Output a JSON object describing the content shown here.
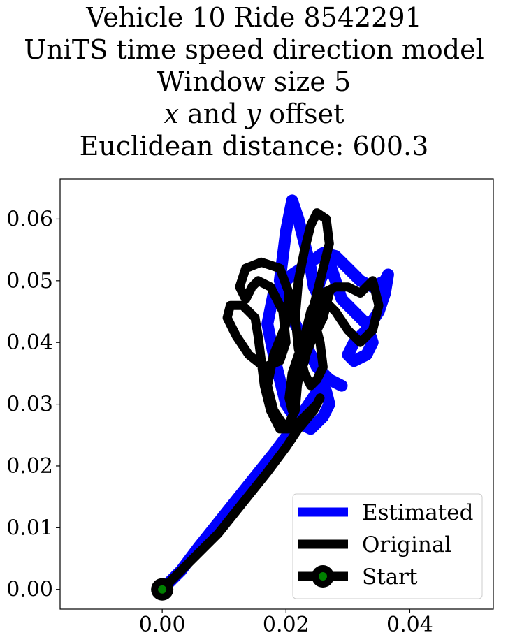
{
  "chart_data": {
    "type": "line",
    "title_lines": [
      "Vehicle 10 Ride 8542291",
      "UniTS time speed direction model",
      "Window size 5",
      "x and y offset",
      "Euclidean distance: 600.3"
    ],
    "xlabel": "",
    "ylabel": "",
    "xlim": [
      -0.0165,
      0.0535
    ],
    "ylim": [
      -0.0032,
      0.0665
    ],
    "xticks": [
      0.0,
      0.02,
      0.04
    ],
    "xtick_labels": [
      "0.00",
      "0.02",
      "0.04"
    ],
    "yticks": [
      0.0,
      0.01,
      0.02,
      0.03,
      0.04,
      0.05,
      0.06
    ],
    "ytick_labels": [
      "0.00",
      "0.01",
      "0.02",
      "0.03",
      "0.04",
      "0.05",
      "0.06"
    ],
    "grid": false,
    "legend_position": "lower-right",
    "series": [
      {
        "name": "Estimated",
        "color": "#0000ff",
        "x": [
          0.0,
          0.003,
          0.006,
          0.01,
          0.014,
          0.018,
          0.021,
          0.023,
          0.025,
          0.026,
          0.0265,
          0.027,
          0.026,
          0.024,
          0.022,
          0.02,
          0.019,
          0.018,
          0.017,
          0.018,
          0.021,
          0.024,
          0.026,
          0.028,
          0.03,
          0.032,
          0.034,
          0.036,
          0.0365,
          0.036,
          0.035,
          0.033,
          0.031,
          0.03,
          0.031,
          0.033,
          0.034,
          0.033,
          0.031,
          0.029,
          0.028,
          0.027,
          0.0265,
          0.0255,
          0.025,
          0.0245,
          0.024,
          0.023,
          0.022,
          0.021,
          0.02,
          0.019,
          0.021,
          0.023,
          0.025,
          0.027,
          0.029
        ],
        "y": [
          0.0,
          0.003,
          0.007,
          0.012,
          0.017,
          0.022,
          0.026,
          0.029,
          0.032,
          0.033,
          0.032,
          0.03,
          0.028,
          0.026,
          0.027,
          0.03,
          0.034,
          0.038,
          0.043,
          0.048,
          0.051,
          0.053,
          0.0545,
          0.054,
          0.052,
          0.05,
          0.049,
          0.05,
          0.051,
          0.048,
          0.045,
          0.042,
          0.04,
          0.038,
          0.037,
          0.038,
          0.04,
          0.043,
          0.045,
          0.047,
          0.05,
          0.053,
          0.052,
          0.05,
          0.048,
          0.049,
          0.052,
          0.056,
          0.06,
          0.063,
          0.058,
          0.05,
          0.044,
          0.04,
          0.036,
          0.034,
          0.033
        ]
      },
      {
        "name": "Original",
        "color": "#000000",
        "x": [
          0.0,
          0.002,
          0.005,
          0.009,
          0.013,
          0.017,
          0.02,
          0.022,
          0.0245,
          0.0255,
          0.025,
          0.023,
          0.021,
          0.019,
          0.0175,
          0.0165,
          0.016,
          0.0155,
          0.015,
          0.013,
          0.011,
          0.0105,
          0.012,
          0.014,
          0.0165,
          0.019,
          0.02,
          0.0195,
          0.0175,
          0.0155,
          0.0145,
          0.0135,
          0.0125,
          0.0135,
          0.016,
          0.019,
          0.0205,
          0.02,
          0.018,
          0.017,
          0.018,
          0.02,
          0.0215,
          0.022,
          0.023,
          0.024,
          0.025,
          0.026,
          0.028,
          0.03,
          0.032,
          0.034,
          0.035,
          0.034,
          0.032,
          0.03,
          0.028,
          0.026,
          0.0245,
          0.0255,
          0.026,
          0.025,
          0.024,
          0.023,
          0.022,
          0.0215,
          0.022,
          0.023,
          0.024,
          0.025,
          0.0265,
          0.027,
          0.026,
          0.025,
          0.024,
          0.0235,
          0.023,
          0.022,
          0.0215,
          0.021,
          0.0205,
          0.021,
          0.022,
          0.023,
          0.0245,
          0.026,
          0.027,
          0.026,
          0.024,
          0.022,
          0.021
        ],
        "y": [
          0.0,
          0.002,
          0.005,
          0.009,
          0.014,
          0.019,
          0.023,
          0.026,
          0.029,
          0.031,
          0.03,
          0.028,
          0.026,
          0.026,
          0.029,
          0.033,
          0.037,
          0.041,
          0.044,
          0.046,
          0.046,
          0.044,
          0.041,
          0.038,
          0.036,
          0.037,
          0.04,
          0.045,
          0.049,
          0.05,
          0.049,
          0.047,
          0.049,
          0.052,
          0.053,
          0.052,
          0.048,
          0.043,
          0.038,
          0.033,
          0.029,
          0.026,
          0.029,
          0.035,
          0.041,
          0.045,
          0.047,
          0.048,
          0.049,
          0.049,
          0.048,
          0.05,
          0.046,
          0.042,
          0.04,
          0.042,
          0.045,
          0.047,
          0.044,
          0.04,
          0.036,
          0.034,
          0.033,
          0.035,
          0.039,
          0.044,
          0.05,
          0.055,
          0.059,
          0.061,
          0.06,
          0.056,
          0.052,
          0.048,
          0.044,
          0.04,
          0.037,
          0.034,
          0.031,
          0.029,
          0.031,
          0.035,
          0.038,
          0.04,
          0.043,
          0.046,
          0.048,
          0.044,
          0.04,
          0.035,
          0.031
        ]
      }
    ],
    "start_marker": {
      "name": "Start",
      "x": 0.0,
      "y": 0.0,
      "outer_color": "#000000",
      "inner_color": "#008000"
    },
    "legend": [
      {
        "label": "Estimated",
        "color": "#0000ff",
        "marker": false
      },
      {
        "label": "Original",
        "color": "#000000",
        "marker": false
      },
      {
        "label": "Start",
        "color": "#000000",
        "marker": true,
        "marker_color": "#008000"
      }
    ]
  }
}
